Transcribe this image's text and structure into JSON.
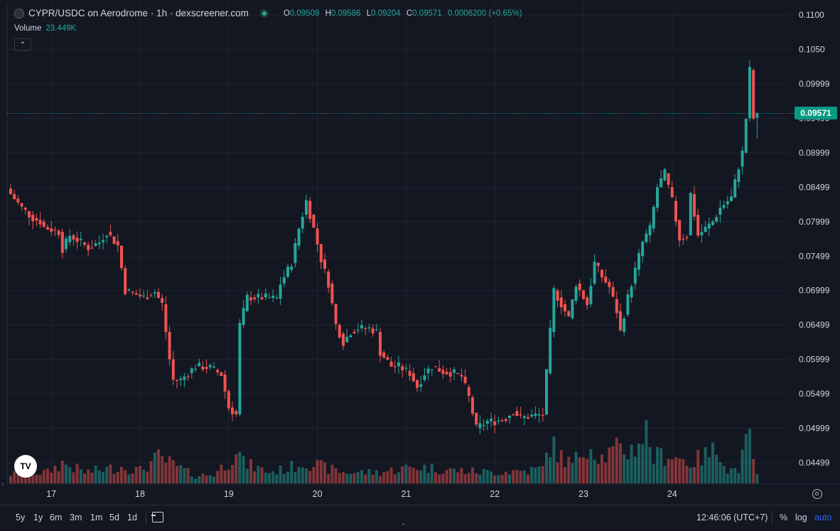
{
  "header": {
    "title": "CYPR/USDC on Aerodrome · 1h · dexscreener.com",
    "ohlc": {
      "o_key": "O",
      "o": "0.09509",
      "h_key": "H",
      "h": "0.09586",
      "l_key": "L",
      "l": "0.09204",
      "c_key": "C",
      "c": "0.09571",
      "change": "0.0006200 (+0.65%)"
    },
    "volume_label": "Volume",
    "volume_value": "23.449K",
    "collapse_icon": "chevron-up-icon"
  },
  "last_price_label": "0.09571",
  "colors": {
    "up": "#26a69a",
    "down": "#ef5350",
    "background": "#131722",
    "grid": "#1f2430"
  },
  "logo_text": "TV",
  "bottom_bar": {
    "ranges": [
      "5y",
      "1y",
      "6m",
      "3m",
      "1m",
      "5d",
      "1d"
    ],
    "clock": "12:46:06 (UTC+7)",
    "percent": "%",
    "log": "log",
    "auto": "auto"
  },
  "chart_data": {
    "type": "candlestick",
    "interval": "1h",
    "price_axis_labels": [
      "0.1100",
      "0.1050",
      "0.09999",
      "0.09499",
      "0.08999",
      "0.08499",
      "0.07999",
      "0.07499",
      "0.06999",
      "0.06499",
      "0.05999",
      "0.05499",
      "0.04999",
      "0.04499"
    ],
    "price_axis_values": [
      0.11,
      0.105,
      0.09999,
      0.09499,
      0.08999,
      0.08499,
      0.07999,
      0.07499,
      0.06999,
      0.06499,
      0.05999,
      0.05499,
      0.04999,
      0.04499
    ],
    "ylim": [
      0.0425,
      0.112
    ],
    "x_tick_labels": [
      "17",
      "18",
      "19",
      "20",
      "21",
      "22",
      "23",
      "24"
    ],
    "x_ticks_hour_index": [
      11,
      35,
      59,
      83,
      107,
      131,
      155,
      179
    ],
    "last_price": 0.09571,
    "keyframes_hour_close": [
      [
        0,
        0.084
      ],
      [
        3,
        0.082
      ],
      [
        6,
        0.0805
      ],
      [
        8,
        0.08
      ],
      [
        9,
        0.0792
      ],
      [
        13,
        0.0785
      ],
      [
        14,
        0.076
      ],
      [
        16,
        0.078
      ],
      [
        19,
        0.077
      ],
      [
        21,
        0.0762
      ],
      [
        24,
        0.077
      ],
      [
        26,
        0.0785
      ],
      [
        29,
        0.0765
      ],
      [
        31,
        0.07
      ],
      [
        36,
        0.069
      ],
      [
        39,
        0.0698
      ],
      [
        41,
        0.068
      ],
      [
        43,
        0.06
      ],
      [
        44,
        0.057
      ],
      [
        46,
        0.057
      ],
      [
        50,
        0.059
      ],
      [
        54,
        0.0588
      ],
      [
        57,
        0.0578
      ],
      [
        59,
        0.053
      ],
      [
        61,
        0.052
      ],
      [
        62,
        0.065
      ],
      [
        64,
        0.069
      ],
      [
        69,
        0.069
      ],
      [
        72,
        0.0688
      ],
      [
        73,
        0.071
      ],
      [
        76,
        0.074
      ],
      [
        78,
        0.079
      ],
      [
        80,
        0.083
      ],
      [
        82,
        0.079
      ],
      [
        84,
        0.0745
      ],
      [
        86,
        0.071
      ],
      [
        88,
        0.065
      ],
      [
        90,
        0.0625
      ],
      [
        92,
        0.064
      ],
      [
        94,
        0.0645
      ],
      [
        97,
        0.0645
      ],
      [
        99,
        0.064
      ],
      [
        100,
        0.061
      ],
      [
        103,
        0.059
      ],
      [
        105,
        0.059
      ],
      [
        108,
        0.058
      ],
      [
        110,
        0.056
      ],
      [
        112,
        0.058
      ],
      [
        114,
        0.059
      ],
      [
        117,
        0.0582
      ],
      [
        120,
        0.058
      ],
      [
        122,
        0.0575
      ],
      [
        124,
        0.0545
      ],
      [
        126,
        0.05
      ],
      [
        129,
        0.051
      ],
      [
        131,
        0.051
      ],
      [
        134,
        0.0515
      ],
      [
        136,
        0.0525
      ],
      [
        138,
        0.0515
      ],
      [
        141,
        0.0518
      ],
      [
        144,
        0.052
      ],
      [
        146,
        0.064
      ],
      [
        147,
        0.07
      ],
      [
        149,
        0.068
      ],
      [
        151,
        0.066
      ],
      [
        153,
        0.071
      ],
      [
        156,
        0.068
      ],
      [
        158,
        0.074
      ],
      [
        160,
        0.072
      ],
      [
        162,
        0.0705
      ],
      [
        164,
        0.067
      ],
      [
        165,
        0.064
      ],
      [
        167,
        0.069
      ],
      [
        169,
        0.073
      ],
      [
        171,
        0.077
      ],
      [
        173,
        0.079
      ],
      [
        175,
        0.085
      ],
      [
        177,
        0.087
      ],
      [
        179,
        0.083
      ],
      [
        181,
        0.0775
      ],
      [
        183,
        0.078
      ],
      [
        184,
        0.084
      ],
      [
        186,
        0.078
      ],
      [
        188,
        0.079
      ],
      [
        190,
        0.08
      ],
      [
        192,
        0.082
      ],
      [
        195,
        0.0835
      ],
      [
        197,
        0.088
      ],
      [
        198,
        0.09
      ],
      [
        199,
        0.095
      ],
      [
        200,
        0.102
      ],
      [
        201,
        0.095
      ],
      [
        202,
        0.0957
      ]
    ],
    "volume": {
      "last_value": 23449,
      "keyframes_hour_volume": [
        [
          0,
          0.25
        ],
        [
          10,
          0.3
        ],
        [
          14,
          0.55
        ],
        [
          20,
          0.3
        ],
        [
          30,
          0.45
        ],
        [
          35,
          0.35
        ],
        [
          40,
          0.7
        ],
        [
          45,
          0.45
        ],
        [
          50,
          0.2
        ],
        [
          55,
          0.25
        ],
        [
          59,
          0.6
        ],
        [
          61,
          1.0
        ],
        [
          63,
          0.55
        ],
        [
          70,
          0.3
        ],
        [
          75,
          0.4
        ],
        [
          80,
          0.6
        ],
        [
          84,
          0.45
        ],
        [
          90,
          0.3
        ],
        [
          100,
          0.3
        ],
        [
          106,
          0.4
        ],
        [
          110,
          0.45
        ],
        [
          120,
          0.35
        ],
        [
          130,
          0.3
        ],
        [
          140,
          0.35
        ],
        [
          144,
          0.4
        ],
        [
          146,
          1.1
        ],
        [
          148,
          0.8
        ],
        [
          152,
          0.5
        ],
        [
          156,
          1.1
        ],
        [
          160,
          0.7
        ],
        [
          164,
          0.9
        ],
        [
          168,
          0.9
        ],
        [
          172,
          1.4
        ],
        [
          174,
          0.7
        ],
        [
          178,
          0.8
        ],
        [
          184,
          0.55
        ],
        [
          192,
          0.95
        ],
        [
          194,
          0.35
        ],
        [
          197,
          0.4
        ],
        [
          199,
          1.0
        ],
        [
          200,
          1.2
        ],
        [
          201,
          0.7
        ],
        [
          202,
          0.35
        ]
      ]
    }
  }
}
